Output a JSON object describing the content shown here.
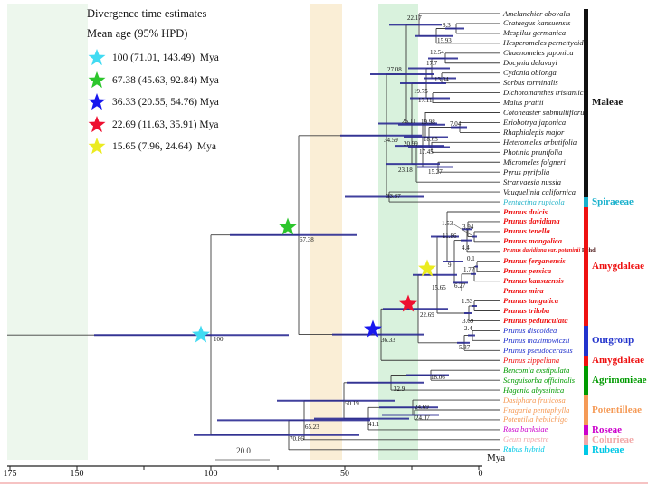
{
  "legend": {
    "title": "Divergence time estimates",
    "subtitle": "Mean age (95% HPD)",
    "items": [
      {
        "color": "#41dbf2",
        "label": "100 (71.01, 143.49)  Mya"
      },
      {
        "color": "#2cc62c",
        "label": "67.38 (45.63, 92.84) Mya"
      },
      {
        "color": "#1818ee",
        "label": "36.33 (20.55, 54.76) Mya"
      },
      {
        "color": "#ee1030",
        "label": "22.69 (11.63, 35.91) Mya"
      },
      {
        "color": "#ebeb20",
        "label": "15.65 (7.96, 24.64)  Mya"
      }
    ]
  },
  "axis": {
    "tick_labels": [
      "175",
      "150",
      "100",
      "50",
      "0"
    ],
    "unit_label": "Mya",
    "scale_bar_label": "20.0"
  },
  "taxa": [
    {
      "name": "Amelanchier obovalis",
      "color": "#1a1a1a",
      "bold": false
    },
    {
      "name": "Crataegus kansuensis",
      "color": "#1a1a1a",
      "bold": false
    },
    {
      "name": "Mespilus germanica",
      "color": "#1a1a1a",
      "bold": false
    },
    {
      "name": "Hesperomeles pernettyoide",
      "color": "#1a1a1a",
      "bold": false
    },
    {
      "name": "Chaenomeles japonica",
      "color": "#1a1a1a",
      "bold": false
    },
    {
      "name": "Docynia delavayi",
      "color": "#1a1a1a",
      "bold": false
    },
    {
      "name": "Cydonia oblonga",
      "color": "#1a1a1a",
      "bold": false
    },
    {
      "name": "Sorbus torminalis",
      "color": "#1a1a1a",
      "bold": false
    },
    {
      "name": "Dichotomanthes tristaniic.",
      "color": "#1a1a1a",
      "bold": false
    },
    {
      "name": "Malus prattii",
      "color": "#1a1a1a",
      "bold": false
    },
    {
      "name": "Cotoneaster submultiflorus",
      "color": "#1a1a1a",
      "bold": false
    },
    {
      "name": "Eriobotrya japonica",
      "color": "#1a1a1a",
      "bold": false
    },
    {
      "name": "Rhaphiolepis major",
      "color": "#1a1a1a",
      "bold": false
    },
    {
      "name": "Heteromeles arbutifolia",
      "color": "#1a1a1a",
      "bold": false
    },
    {
      "name": "Photinia prunifolia",
      "color": "#1a1a1a",
      "bold": false
    },
    {
      "name": "Micromeles folgneri",
      "color": "#1a1a1a",
      "bold": false
    },
    {
      "name": "Pyrus pyrifolia",
      "color": "#1a1a1a",
      "bold": false
    },
    {
      "name": "Stranvaesia nussia",
      "color": "#1a1a1a",
      "bold": false
    },
    {
      "name": "Vauquelinia californica",
      "color": "#1a1a1a",
      "bold": false
    },
    {
      "name": "Pentactina rupicola",
      "color": "#2bb5c9",
      "bold": false
    },
    {
      "name": "Prunus dulcis",
      "color": "#ee1111",
      "bold": true
    },
    {
      "name": "Prunus davidiana",
      "color": "#ee1111",
      "bold": true
    },
    {
      "name": "Prunus tenella",
      "color": "#ee1111",
      "bold": true
    },
    {
      "name": "Prunus mongolica",
      "color": "#ee1111",
      "bold": true
    },
    {
      "name": "Prunus davidiana var. potaninii",
      "authority": "Rehd.",
      "color": "#ee1111",
      "bold": true,
      "small": true
    },
    {
      "name": "Prunus ferganensis",
      "color": "#ee1111",
      "bold": true
    },
    {
      "name": "Prunus persica",
      "color": "#ee1111",
      "bold": true
    },
    {
      "name": "Prunus kansuensis",
      "color": "#ee1111",
      "bold": true
    },
    {
      "name": "Prunus mira",
      "color": "#ee1111",
      "bold": true
    },
    {
      "name": "Prunus tangutica",
      "color": "#ee1111",
      "bold": true
    },
    {
      "name": "Prunus triloba",
      "color": "#ee1111",
      "bold": true
    },
    {
      "name": "Prunus pedunculata",
      "color": "#ee1111",
      "bold": true
    },
    {
      "name": "Prunus discoidea",
      "color": "#2233cc",
      "bold": false
    },
    {
      "name": "Prunus maximowiczii",
      "color": "#2233cc",
      "bold": false
    },
    {
      "name": "Prunus pseudocerasus",
      "color": "#2233cc",
      "bold": false
    },
    {
      "name": "Prunus zippeliana",
      "color": "#ee1111",
      "bold": false
    },
    {
      "name": "Bencomia exstipulata",
      "color": "#009a00",
      "bold": false
    },
    {
      "name": "Sanguisorba officinalis",
      "color": "#009a00",
      "bold": false
    },
    {
      "name": "Hagenia abyssinica",
      "color": "#009a00",
      "bold": false
    },
    {
      "name": "Dasiphora fruticosa",
      "color": "#f59a56",
      "bold": false
    },
    {
      "name": "Fragaria pentaphylla",
      "color": "#f59a56",
      "bold": false
    },
    {
      "name": "Potentilla hebiichigo",
      "color": "#f59a56",
      "bold": false
    },
    {
      "name": "Rosa banksiae",
      "color": "#cc00cc",
      "bold": false
    },
    {
      "name": "Geum rupestre",
      "color": "#f2a8a8",
      "bold": false
    },
    {
      "name": "Rubus hybrid",
      "color": "#00c8e6",
      "bold": false
    }
  ],
  "node_ages": [
    "22.17",
    "8.3",
    "15.93",
    "12.54",
    "17.7",
    "13.84",
    "19.75",
    "17.11",
    "27.08",
    "25.11",
    "19.98",
    "7.04",
    "18.65",
    "20.99",
    "17.45",
    "23.18",
    "15.27",
    "34.59",
    "33.37",
    "67.38",
    "100",
    "1.53",
    "3.94",
    "11.86",
    "4.4",
    "9",
    "0.1",
    "1.77",
    "15.65",
    "6.27",
    "1.53",
    "3.69",
    "22.69",
    "2.4",
    "5.37",
    "36.33",
    "18.06",
    "32.9",
    "50.19",
    "24.69",
    "24.07",
    "41.1",
    "65.23",
    "70.86"
  ],
  "clades": [
    {
      "label": "Maleae",
      "color": "#111111"
    },
    {
      "label": "Spiraeeae",
      "color": "#17b0cc"
    },
    {
      "label": "Amygdaleae",
      "color": "#ee1111"
    },
    {
      "label": "Outgroup",
      "color": "#2233cc"
    },
    {
      "label": "Amygdaleae",
      "color": "#ee1111"
    },
    {
      "label": "Agrimonieae",
      "color": "#009a00"
    },
    {
      "label": "Potentilleae",
      "color": "#f59a56"
    },
    {
      "label": "Roseae",
      "color": "#cc00cc"
    },
    {
      "label": "Colurieae",
      "color": "#f2a8a8"
    },
    {
      "label": "Rubeae",
      "color": "#00c8e6"
    }
  ]
}
